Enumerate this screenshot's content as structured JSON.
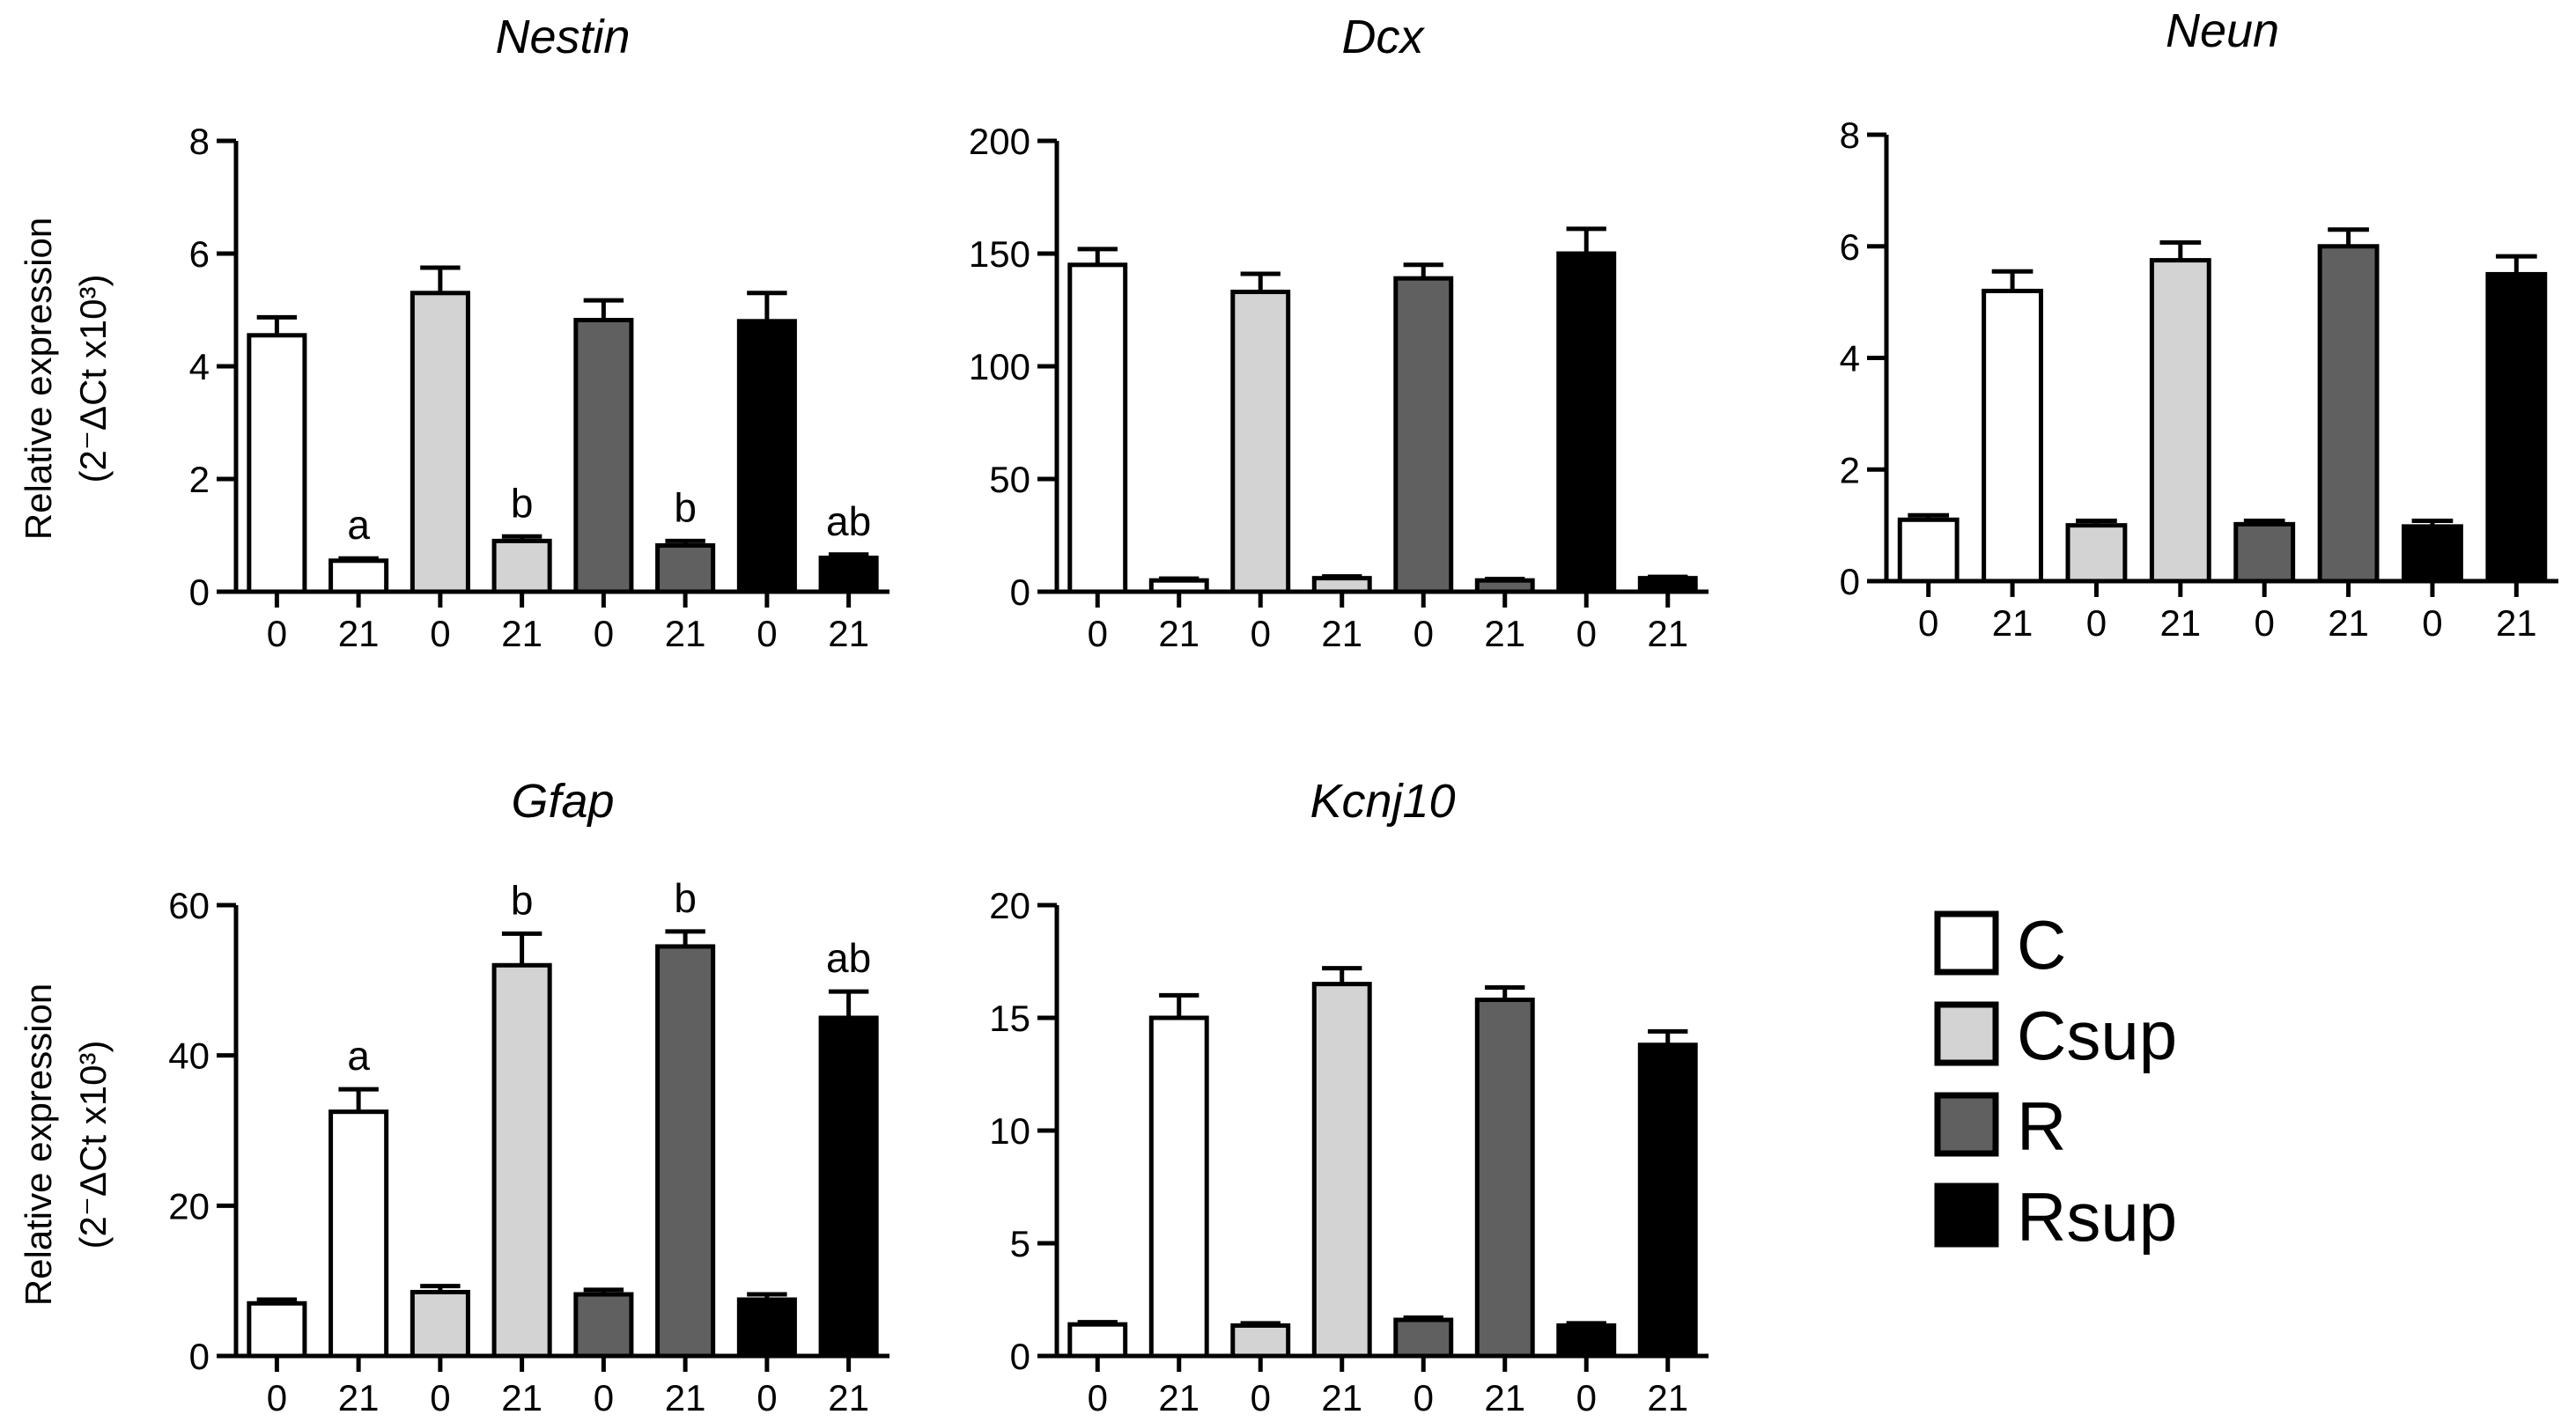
{
  "colors": {
    "C": "#ffffff",
    "Csup": "#d3d3d3",
    "R": "#606060",
    "Rsup": "#000000",
    "axis": "#000000"
  },
  "groups": [
    "C",
    "Csup",
    "R",
    "Rsup"
  ],
  "ylabel_line1": "Relative expression",
  "ylabel_line2": "(2⁻ΔCt x10³)",
  "legend": {
    "items": [
      {
        "key": "C",
        "label": "C"
      },
      {
        "key": "Csup",
        "label": "Csup"
      },
      {
        "key": "R",
        "label": "R"
      },
      {
        "key": "Rsup",
        "label": "Rsup"
      }
    ]
  },
  "chart_data": [
    {
      "type": "bar",
      "title": "Nestin",
      "categories": [
        "0",
        "21",
        "0",
        "21",
        "0",
        "21",
        "0",
        "21"
      ],
      "groups": [
        "C",
        "C",
        "Csup",
        "Csup",
        "R",
        "R",
        "Rsup",
        "Rsup"
      ],
      "values": [
        4.55,
        0.55,
        5.3,
        0.9,
        4.82,
        0.82,
        4.8,
        0.6
      ],
      "errors": [
        0.32,
        0.04,
        0.45,
        0.08,
        0.35,
        0.08,
        0.5,
        0.06
      ],
      "labels": [
        "",
        "a",
        "",
        "b",
        "",
        "b",
        "",
        "ab"
      ],
      "ylim": [
        0,
        8
      ],
      "yticks": [
        0,
        2,
        4,
        6,
        8
      ],
      "ylabel": "Relative expression"
    },
    {
      "type": "bar",
      "title": "Dcx",
      "categories": [
        "0",
        "21",
        "0",
        "21",
        "0",
        "21",
        "0",
        "21"
      ],
      "groups": [
        "C",
        "C",
        "Csup",
        "Csup",
        "R",
        "R",
        "Rsup",
        "Rsup"
      ],
      "values": [
        145,
        5,
        133,
        6,
        139,
        5,
        150,
        6
      ],
      "errors": [
        7,
        0.8,
        8,
        0.8,
        6,
        0.6,
        11,
        0.6
      ],
      "labels": [
        "",
        "",
        "",
        "",
        "",
        "",
        "",
        ""
      ],
      "ylim": [
        0,
        200
      ],
      "yticks": [
        0,
        50,
        100,
        150,
        200
      ],
      "ylabel": ""
    },
    {
      "type": "bar",
      "title": "Neun",
      "categories": [
        "0",
        "21",
        "0",
        "21",
        "0",
        "21",
        "0",
        "21"
      ],
      "groups": [
        "C",
        "C",
        "Csup",
        "Csup",
        "R",
        "R",
        "Rsup",
        "Rsup"
      ],
      "values": [
        1.1,
        5.2,
        1.0,
        5.75,
        1.02,
        6.0,
        0.98,
        5.5
      ],
      "errors": [
        0.08,
        0.35,
        0.08,
        0.32,
        0.06,
        0.3,
        0.1,
        0.32
      ],
      "labels": [
        "",
        "",
        "",
        "",
        "",
        "",
        "",
        ""
      ],
      "ylim": [
        0,
        8
      ],
      "yticks": [
        0,
        2,
        4,
        6,
        8
      ],
      "ylabel": ""
    },
    {
      "type": "bar",
      "title": "Gfap",
      "categories": [
        "0",
        "21",
        "0",
        "21",
        "0",
        "21",
        "0",
        "21"
      ],
      "groups": [
        "C",
        "C",
        "Csup",
        "Csup",
        "R",
        "R",
        "Rsup",
        "Rsup"
      ],
      "values": [
        7,
        32.5,
        8.5,
        52,
        8.2,
        54.5,
        7.5,
        45
      ],
      "errors": [
        0.5,
        3,
        0.8,
        4.2,
        0.6,
        2,
        0.7,
        3.5
      ],
      "labels": [
        "",
        "a",
        "",
        "b",
        "",
        "b",
        "",
        "ab"
      ],
      "ylim": [
        0,
        60
      ],
      "yticks": [
        0,
        20,
        40,
        60
      ],
      "ylabel": "Relative expression"
    },
    {
      "type": "bar",
      "title": "Kcnj10",
      "categories": [
        "0",
        "21",
        "0",
        "21",
        "0",
        "21",
        "0",
        "21"
      ],
      "groups": [
        "C",
        "C",
        "Csup",
        "Csup",
        "R",
        "R",
        "Rsup",
        "Rsup"
      ],
      "values": [
        1.4,
        15.0,
        1.35,
        16.5,
        1.6,
        15.8,
        1.35,
        13.8
      ],
      "errors": [
        0.1,
        1.0,
        0.1,
        0.7,
        0.1,
        0.55,
        0.1,
        0.6
      ],
      "labels": [
        "",
        "",
        "",
        "",
        "",
        "",
        "",
        ""
      ],
      "ylim": [
        0,
        20
      ],
      "yticks": [
        0,
        5,
        10,
        15,
        20
      ],
      "ylabel": ""
    }
  ]
}
